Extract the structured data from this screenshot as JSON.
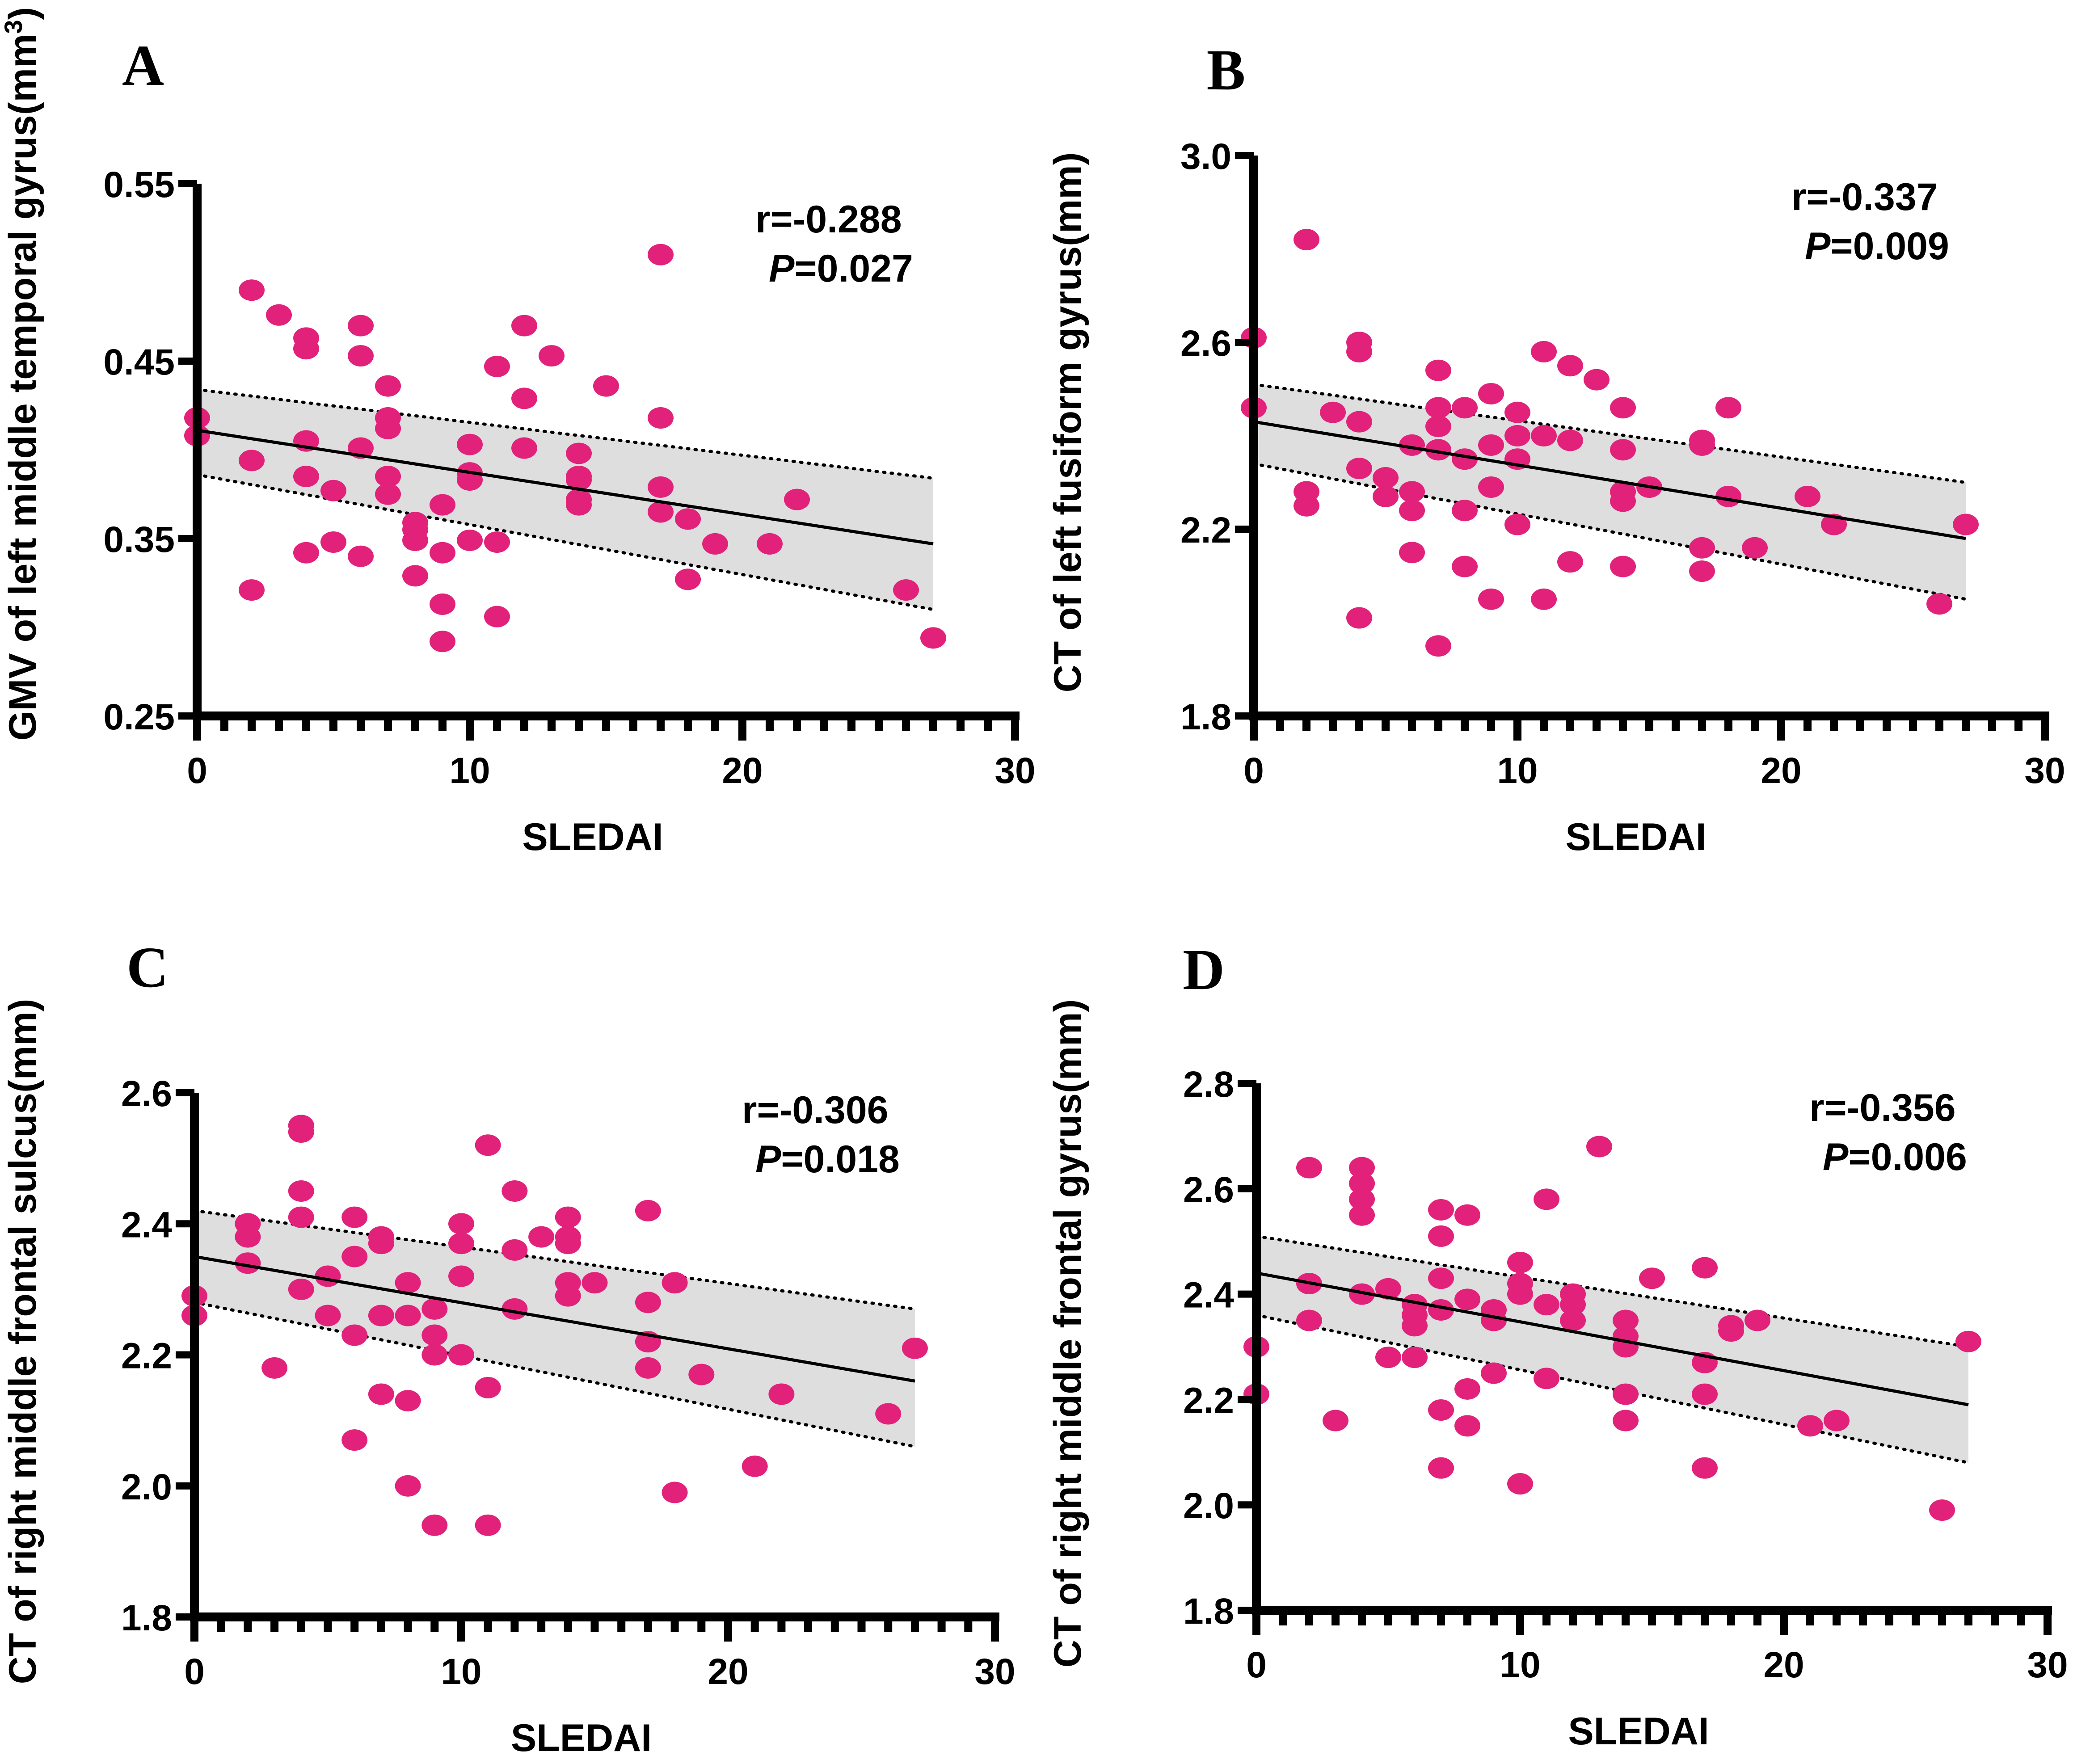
{
  "figure": {
    "dot_color": "#e2227a",
    "band_color": "#dedede"
  },
  "chart_data": [
    {
      "panel": "A",
      "type": "scatter",
      "title": "",
      "xlabel": "SLEDAI",
      "ylabel": "GMV of left middle temporal gyrus(mm",
      "ylabel_sup": "3",
      "ylabel_suffix": ")",
      "xlim": [
        0,
        30
      ],
      "ylim": [
        0.25,
        0.55
      ],
      "xticks": [
        0,
        10,
        20,
        30
      ],
      "xtick_labels": [
        "0",
        "10",
        "20",
        "30"
      ],
      "yticks": [
        0.25,
        0.35,
        0.45,
        0.55
      ],
      "ytick_labels": [
        "0.25",
        "0.35",
        "0.45",
        "0.55"
      ],
      "stats": {
        "r": "r=-0.288",
        "p_label": "P",
        "p_value": "=0.027"
      },
      "regression": {
        "x": [
          0,
          27
        ],
        "y": [
          0.411,
          0.347
        ]
      },
      "ci_upper": {
        "x": [
          0,
          27
        ],
        "y": [
          0.434,
          0.384
        ]
      },
      "ci_lower": {
        "x": [
          0,
          27
        ],
        "y": [
          0.386,
          0.31
        ]
      },
      "points": [
        [
          0,
          0.418
        ],
        [
          0,
          0.408
        ],
        [
          2,
          0.49
        ],
        [
          2,
          0.394
        ],
        [
          2,
          0.321
        ],
        [
          3,
          0.476
        ],
        [
          4,
          0.463
        ],
        [
          4,
          0.457
        ],
        [
          4,
          0.405
        ],
        [
          4,
          0.385
        ],
        [
          4,
          0.342
        ],
        [
          5,
          0.377
        ],
        [
          5,
          0.348
        ],
        [
          6,
          0.47
        ],
        [
          6,
          0.453
        ],
        [
          6,
          0.401
        ],
        [
          6,
          0.34
        ],
        [
          7,
          0.436
        ],
        [
          7,
          0.418
        ],
        [
          7,
          0.412
        ],
        [
          7,
          0.385
        ],
        [
          7,
          0.375
        ],
        [
          8,
          0.359
        ],
        [
          8,
          0.355
        ],
        [
          8,
          0.349
        ],
        [
          8,
          0.329
        ],
        [
          9,
          0.369
        ],
        [
          9,
          0.342
        ],
        [
          9,
          0.313
        ],
        [
          9,
          0.292
        ],
        [
          10,
          0.403
        ],
        [
          10,
          0.387
        ],
        [
          10,
          0.383
        ],
        [
          10,
          0.349
        ],
        [
          11,
          0.447
        ],
        [
          11,
          0.348
        ],
        [
          11,
          0.306
        ],
        [
          12,
          0.47
        ],
        [
          12,
          0.429
        ],
        [
          12,
          0.401
        ],
        [
          13,
          0.453
        ],
        [
          14,
          0.398
        ],
        [
          14,
          0.385
        ],
        [
          14,
          0.383
        ],
        [
          14,
          0.372
        ],
        [
          14,
          0.369
        ],
        [
          15,
          0.436
        ],
        [
          17,
          0.51
        ],
        [
          17,
          0.418
        ],
        [
          17,
          0.379
        ],
        [
          17,
          0.365
        ],
        [
          18,
          0.361
        ],
        [
          18,
          0.327
        ],
        [
          19,
          0.347
        ],
        [
          21,
          0.347
        ],
        [
          22,
          0.372
        ],
        [
          26,
          0.321
        ],
        [
          27,
          0.294
        ]
      ]
    },
    {
      "panel": "B",
      "type": "scatter",
      "title": "",
      "xlabel": "SLEDAI",
      "ylabel": "CT of left fusiform gyrus(mm)",
      "ylabel_sup": "",
      "ylabel_suffix": "",
      "xlim": [
        0,
        30
      ],
      "ylim": [
        1.8,
        3.0
      ],
      "xticks": [
        0,
        10,
        20,
        30
      ],
      "xtick_labels": [
        "0",
        "10",
        "20",
        "30"
      ],
      "yticks": [
        1.8,
        2.2,
        2.6,
        3.0
      ],
      "ytick_labels": [
        "1.8",
        "2.2",
        "2.6",
        "3.0"
      ],
      "stats": {
        "r": "r=-0.337",
        "p_label": "P",
        "p_value": "=0.009"
      },
      "regression": {
        "x": [
          0,
          27
        ],
        "y": [
          2.43,
          2.18
        ]
      },
      "ci_upper": {
        "x": [
          0,
          27
        ],
        "y": [
          2.51,
          2.3
        ]
      },
      "ci_lower": {
        "x": [
          0,
          27
        ],
        "y": [
          2.34,
          2.05
        ]
      },
      "points": [
        [
          0,
          2.61
        ],
        [
          0,
          2.46
        ],
        [
          2,
          2.82
        ],
        [
          2,
          2.28
        ],
        [
          2,
          2.25
        ],
        [
          3,
          2.45
        ],
        [
          4,
          2.6
        ],
        [
          4,
          2.58
        ],
        [
          4,
          2.43
        ],
        [
          4,
          2.33
        ],
        [
          4,
          2.01
        ],
        [
          5,
          2.31
        ],
        [
          5,
          2.27
        ],
        [
          6,
          2.38
        ],
        [
          6,
          2.28
        ],
        [
          6,
          2.24
        ],
        [
          6,
          2.15
        ],
        [
          7,
          2.54
        ],
        [
          7,
          2.46
        ],
        [
          7,
          2.42
        ],
        [
          7,
          2.37
        ],
        [
          7,
          1.95
        ],
        [
          8,
          2.46
        ],
        [
          8,
          2.35
        ],
        [
          8,
          2.24
        ],
        [
          8,
          2.12
        ],
        [
          9,
          2.49
        ],
        [
          9,
          2.38
        ],
        [
          9,
          2.29
        ],
        [
          9,
          2.05
        ],
        [
          10,
          2.45
        ],
        [
          10,
          2.4
        ],
        [
          10,
          2.35
        ],
        [
          10,
          2.21
        ],
        [
          11,
          2.58
        ],
        [
          11,
          2.4
        ],
        [
          11,
          2.05
        ],
        [
          12,
          2.55
        ],
        [
          12,
          2.39
        ],
        [
          12,
          2.13
        ],
        [
          13,
          2.52
        ],
        [
          14,
          2.46
        ],
        [
          14,
          2.37
        ],
        [
          14,
          2.28
        ],
        [
          14,
          2.26
        ],
        [
          14,
          2.12
        ],
        [
          15,
          2.29
        ],
        [
          17,
          2.39
        ],
        [
          17,
          2.38
        ],
        [
          17,
          2.16
        ],
        [
          17,
          2.11
        ],
        [
          18,
          2.46
        ],
        [
          18,
          2.27
        ],
        [
          19,
          2.16
        ],
        [
          21,
          2.27
        ],
        [
          22,
          2.21
        ],
        [
          26,
          2.04
        ],
        [
          27,
          2.21
        ]
      ]
    },
    {
      "panel": "C",
      "type": "scatter",
      "title": "",
      "xlabel": "SLEDAI",
      "ylabel": "CT of right middle frontal sulcus(mm)",
      "ylabel_sup": "",
      "ylabel_suffix": "",
      "xlim": [
        0,
        30
      ],
      "ylim": [
        1.8,
        2.6
      ],
      "xticks": [
        0,
        10,
        20,
        30
      ],
      "xtick_labels": [
        "0",
        "10",
        "20",
        "30"
      ],
      "yticks": [
        1.8,
        2.0,
        2.2,
        2.4,
        2.6
      ],
      "ytick_labels": [
        "1.8",
        "2.0",
        "2.2",
        "2.4",
        "2.6"
      ],
      "stats": {
        "r": "r=-0.306",
        "p_label": "P",
        "p_value": "=0.018"
      },
      "regression": {
        "x": [
          0,
          27
        ],
        "y": [
          2.35,
          2.16
        ]
      },
      "ci_upper": {
        "x": [
          0,
          27
        ],
        "y": [
          2.42,
          2.27
        ]
      },
      "ci_lower": {
        "x": [
          0,
          27
        ],
        "y": [
          2.28,
          2.06
        ]
      },
      "points": [
        [
          0,
          2.29
        ],
        [
          0,
          2.26
        ],
        [
          2,
          2.4
        ],
        [
          2,
          2.38
        ],
        [
          2,
          2.34
        ],
        [
          3,
          2.18
        ],
        [
          4,
          2.55
        ],
        [
          4,
          2.54
        ],
        [
          4,
          2.45
        ],
        [
          4,
          2.41
        ],
        [
          4,
          2.3
        ],
        [
          5,
          2.32
        ],
        [
          5,
          2.26
        ],
        [
          6,
          2.41
        ],
        [
          6,
          2.35
        ],
        [
          6,
          2.23
        ],
        [
          6,
          2.07
        ],
        [
          7,
          2.38
        ],
        [
          7,
          2.37
        ],
        [
          7,
          2.26
        ],
        [
          7,
          2.14
        ],
        [
          8,
          2.31
        ],
        [
          8,
          2.26
        ],
        [
          8,
          2.13
        ],
        [
          8,
          2.0
        ],
        [
          9,
          2.27
        ],
        [
          9,
          2.23
        ],
        [
          9,
          2.2
        ],
        [
          9,
          1.94
        ],
        [
          10,
          2.4
        ],
        [
          10,
          2.37
        ],
        [
          10,
          2.32
        ],
        [
          10,
          2.2
        ],
        [
          11,
          2.52
        ],
        [
          11,
          2.15
        ],
        [
          11,
          1.94
        ],
        [
          12,
          2.45
        ],
        [
          12,
          2.36
        ],
        [
          12,
          2.27
        ],
        [
          13,
          2.38
        ],
        [
          14,
          2.41
        ],
        [
          14,
          2.38
        ],
        [
          14,
          2.37
        ],
        [
          14,
          2.31
        ],
        [
          14,
          2.29
        ],
        [
          15,
          2.31
        ],
        [
          17,
          2.42
        ],
        [
          17,
          2.28
        ],
        [
          17,
          2.22
        ],
        [
          17,
          2.18
        ],
        [
          18,
          2.31
        ],
        [
          18,
          1.99
        ],
        [
          19,
          2.17
        ],
        [
          21,
          2.03
        ],
        [
          22,
          2.14
        ],
        [
          26,
          2.11
        ],
        [
          27,
          2.21
        ]
      ]
    },
    {
      "panel": "D",
      "type": "scatter",
      "title": "",
      "xlabel": "SLEDAI",
      "ylabel": "CT of right middle frontal gyrus(mm)",
      "ylabel_sup": "",
      "ylabel_suffix": "",
      "xlim": [
        0,
        30
      ],
      "ylim": [
        1.8,
        2.8
      ],
      "xticks": [
        0,
        10,
        20,
        30
      ],
      "xtick_labels": [
        "0",
        "10",
        "20",
        "30"
      ],
      "yticks": [
        1.8,
        2.0,
        2.2,
        2.4,
        2.6,
        2.8
      ],
      "ytick_labels": [
        "1.8",
        "2.0",
        "2.2",
        "2.4",
        "2.6",
        "2.8"
      ],
      "stats": {
        "r": "r=-0.356",
        "p_label": "P",
        "p_value": "=0.006"
      },
      "regression": {
        "x": [
          0,
          27
        ],
        "y": [
          2.44,
          2.19
        ]
      },
      "ci_upper": {
        "x": [
          0,
          27
        ],
        "y": [
          2.51,
          2.3
        ]
      },
      "ci_lower": {
        "x": [
          0,
          27
        ],
        "y": [
          2.36,
          2.08
        ]
      },
      "points": [
        [
          0,
          2.3
        ],
        [
          0,
          2.21
        ],
        [
          2,
          2.64
        ],
        [
          2,
          2.42
        ],
        [
          2,
          2.35
        ],
        [
          3,
          2.16
        ],
        [
          4,
          2.64
        ],
        [
          4,
          2.61
        ],
        [
          4,
          2.58
        ],
        [
          4,
          2.55
        ],
        [
          4,
          2.4
        ],
        [
          5,
          2.41
        ],
        [
          5,
          2.28
        ],
        [
          6,
          2.38
        ],
        [
          6,
          2.36
        ],
        [
          6,
          2.34
        ],
        [
          6,
          2.28
        ],
        [
          7,
          2.56
        ],
        [
          7,
          2.51
        ],
        [
          7,
          2.43
        ],
        [
          7,
          2.37
        ],
        [
          7,
          2.18
        ],
        [
          7,
          2.07
        ],
        [
          8,
          2.55
        ],
        [
          8,
          2.39
        ],
        [
          8,
          2.22
        ],
        [
          8,
          2.15
        ],
        [
          9,
          2.37
        ],
        [
          9,
          2.35
        ],
        [
          9,
          2.25
        ],
        [
          10,
          2.46
        ],
        [
          10,
          2.42
        ],
        [
          10,
          2.4
        ],
        [
          10,
          2.04
        ],
        [
          11,
          2.58
        ],
        [
          11,
          2.38
        ],
        [
          11,
          2.24
        ],
        [
          12,
          2.4
        ],
        [
          12,
          2.38
        ],
        [
          12,
          2.35
        ],
        [
          13,
          2.68
        ],
        [
          14,
          2.35
        ],
        [
          14,
          2.32
        ],
        [
          14,
          2.3
        ],
        [
          14,
          2.21
        ],
        [
          14,
          2.16
        ],
        [
          15,
          2.43
        ],
        [
          17,
          2.45
        ],
        [
          17,
          2.27
        ],
        [
          17,
          2.21
        ],
        [
          17,
          2.07
        ],
        [
          18,
          2.34
        ],
        [
          18,
          2.33
        ],
        [
          19,
          2.35
        ],
        [
          21,
          2.15
        ],
        [
          22,
          2.16
        ],
        [
          26,
          1.99
        ],
        [
          27,
          2.31
        ]
      ]
    }
  ]
}
